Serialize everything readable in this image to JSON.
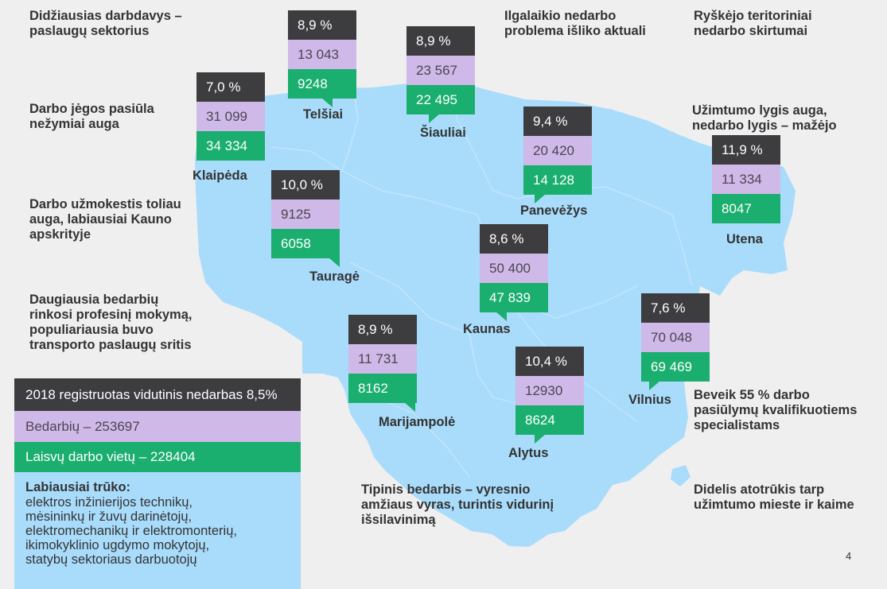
{
  "colors": {
    "background": "#efefef",
    "map_fill": "#a9dcfb",
    "map_borders": "#c4e6fb",
    "rate_box": "#3d3d3f",
    "unemployed_box": "#cfb9e8",
    "vacancies_box": "#1aae6f"
  },
  "notes": {
    "largest_employer": "Didžiausias darbdavys –\npaslaugų sektorius",
    "long_term": "Ilgalaikio nedarbo\nproblema išliko aktuali",
    "territorial": "Ryškėjo teritoriniai\nnedarbo skirtumai",
    "labour_supply": "Darbo jėgos pasiūla\nnežymiai auga",
    "employment_rate": "Užimtumo lygis auga,\nnedarbo lygis – mažėjo",
    "wages": "Darbo užmokestis toliau\nauga, labiausiai Kauno\napskrityje",
    "training": "Daugiausia bedarbių\nrinkosi profesinį mokymą,\npopuliariausia buvo\ntransporto paslaugų sritis",
    "qualified": "Beveik 55 % darbo\npasiūlymų kvalifikuotiems\nspecialistams",
    "typical": "Tipinis bedarbis – vyresnio\namžiaus vyras, turintis vidurinį\nišsilavinimą",
    "gap": "Didelis atotrūkis tarp\nužimtumo mieste ir kaime"
  },
  "regions": [
    {
      "city": "Telšiai",
      "rate": "8,9 %",
      "unemployed": "13 043",
      "vacancies": "9248"
    },
    {
      "city": "Šiauliai",
      "rate": "8,9 %",
      "unemployed": "23 567",
      "vacancies": "22 495"
    },
    {
      "city": "Klaipėda",
      "rate": "7,0 %",
      "unemployed": "31 099",
      "vacancies": "34 334"
    },
    {
      "city": "Panevėžys",
      "rate": "9,4 %",
      "unemployed": "20 420",
      "vacancies": "14 128"
    },
    {
      "city": "Utena",
      "rate": "11,9 %",
      "unemployed": "11 334",
      "vacancies": "8047"
    },
    {
      "city": "Tauragė",
      "rate": "10,0 %",
      "unemployed": "9125",
      "vacancies": "6058"
    },
    {
      "city": "Kaunas",
      "rate": "8,6 %",
      "unemployed": "50 400",
      "vacancies": "47 839"
    },
    {
      "city": "Marijampolė",
      "rate": "8,9 %",
      "unemployed": "11 731",
      "vacancies": "8162"
    },
    {
      "city": "Alytus",
      "rate": "10,4 %",
      "unemployed": "12930",
      "vacancies": "8624"
    },
    {
      "city": "Vilnius",
      "rate": "7,6 %",
      "unemployed": "70 048",
      "vacancies": "69 469"
    }
  ],
  "legend": {
    "rate_label": "2018 registruotas vidutinis nedarbas 8,5%",
    "unemployed_label": "Bedarbių – 253697",
    "vacancies_label": "Laisvų darbo vietų – 228404",
    "shortage_title": "Labiausiai trūko:",
    "shortage_items": [
      "elektros inžinierijos technikų,",
      "mėsininkų ir žuvų darinėtojų,",
      "elektromechanikų ir elektromonterių,",
      "ikimokyklinio ugdymo mokytojų,",
      "statybų sektoriaus darbuotojų"
    ]
  },
  "page_number": "4"
}
